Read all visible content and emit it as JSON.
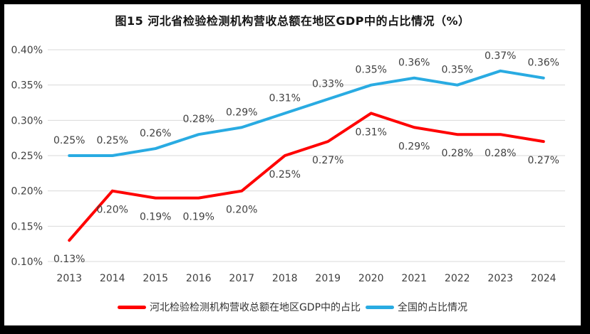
{
  "window": {
    "border_color": "#000000",
    "background": "#ffffff"
  },
  "chart_data": {
    "type": "line",
    "title": "图15 河北省检验检测机构营收总额在地区GDP中的占比情况（%）",
    "categories": [
      "2013",
      "2014",
      "2015",
      "2016",
      "2017",
      "2018",
      "2019",
      "2020",
      "2021",
      "2022",
      "2023",
      "2024"
    ],
    "series": [
      {
        "name": "河北检验检测机构营收总额在地区GDP中的占比",
        "color": "#FF0000",
        "values": [
          0.13,
          0.2,
          0.19,
          0.19,
          0.2,
          0.25,
          0.27,
          0.31,
          0.29,
          0.28,
          0.28,
          0.27
        ],
        "labels": [
          "0.13%",
          "0.20%",
          "0.19%",
          "0.19%",
          "0.20%",
          "0.25%",
          "0.27%",
          "0.31%",
          "0.29%",
          "0.28%",
          "0.28%",
          "0.27%"
        ],
        "label_position": "below"
      },
      {
        "name": "全国的占比情况",
        "color": "#29ABE2",
        "values": [
          0.25,
          0.25,
          0.26,
          0.28,
          0.29,
          0.31,
          0.33,
          0.35,
          0.36,
          0.35,
          0.37,
          0.36
        ],
        "labels": [
          "0.25%",
          "0.25%",
          "0.26%",
          "0.28%",
          "0.29%",
          "0.31%",
          "0.33%",
          "0.35%",
          "0.36%",
          "0.35%",
          "0.37%",
          "0.36%"
        ],
        "label_position": "above"
      }
    ],
    "xlabel": "",
    "ylabel": "",
    "ylim": [
      0.1,
      0.4
    ],
    "ytick_step": 0.05,
    "ytick_labels": [
      "0.10%",
      "0.15%",
      "0.20%",
      "0.25%",
      "0.30%",
      "0.35%",
      "0.40%"
    ],
    "grid": true,
    "gridline_color": "#D9D9D9",
    "label_color": "#404040",
    "line_width": 4,
    "legend_position": "bottom"
  }
}
